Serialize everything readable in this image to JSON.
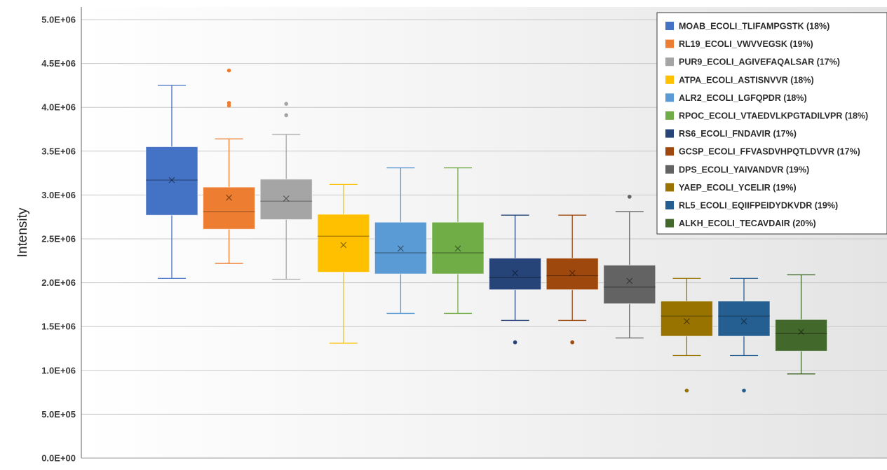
{
  "chart_data": {
    "type": "box",
    "title": "",
    "xlabel": "",
    "ylabel": "Intensity",
    "ylim": [
      0,
      5000000
    ],
    "yticks": [
      {
        "value": 0,
        "label": "0.0E+00"
      },
      {
        "value": 500000,
        "label": "5.0E+05"
      },
      {
        "value": 1000000,
        "label": "1.0E+06"
      },
      {
        "value": 1500000,
        "label": "1.5E+06"
      },
      {
        "value": 2000000,
        "label": "2.0E+06"
      },
      {
        "value": 2500000,
        "label": "2.5E+06"
      },
      {
        "value": 3000000,
        "label": "3.0E+06"
      },
      {
        "value": 3500000,
        "label": "3.5E+06"
      },
      {
        "value": 4000000,
        "label": "4.0E+06"
      },
      {
        "value": 4500000,
        "label": "4.5E+06"
      },
      {
        "value": 5000000,
        "label": "5.0E+06"
      }
    ],
    "grid": true,
    "legend_position": "top-right",
    "series": [
      {
        "name": "MOAB_ECOLI_TLIFAMPGSTK (18%)",
        "color": "#4472c4",
        "min": 2050000,
        "q1": 2770000,
        "median": 3170000,
        "q3": 3550000,
        "max": 4250000,
        "mean": 3170000,
        "outliers": []
      },
      {
        "name": "RL19_ECOLI_VWVVEGSK (19%)",
        "color": "#ed7d31",
        "min": 2220000,
        "q1": 2610000,
        "median": 2810000,
        "q3": 3090000,
        "max": 3640000,
        "mean": 2970000,
        "outliers": [
          4020000,
          4050000,
          4420000
        ]
      },
      {
        "name": "PUR9_ECOLI_AGIVEFAQALSAR (17%)",
        "color": "#a5a5a5",
        "min": 2040000,
        "q1": 2720000,
        "median": 2930000,
        "q3": 3180000,
        "max": 3690000,
        "mean": 2960000,
        "outliers": [
          3910000,
          4040000
        ]
      },
      {
        "name": "ATPA_ECOLI_ASTISNVVR (18%)",
        "color": "#ffc000",
        "min": 1310000,
        "q1": 2120000,
        "median": 2530000,
        "q3": 2780000,
        "max": 3120000,
        "mean": 2430000,
        "outliers": []
      },
      {
        "name": "ALR2_ECOLI_LGFQPDR (18%)",
        "color": "#5b9bd5",
        "min": 1650000,
        "q1": 2100000,
        "median": 2340000,
        "q3": 2690000,
        "max": 3310000,
        "mean": 2390000,
        "outliers": []
      },
      {
        "name": "RPOC_ECOLI_VTAEDVLKPGTADILVPR (18%)",
        "color": "#70ad47",
        "min": 1650000,
        "q1": 2100000,
        "median": 2340000,
        "q3": 2690000,
        "max": 3310000,
        "mean": 2390000,
        "outliers": []
      },
      {
        "name": "RS6_ECOLI_FNDAVIR (17%)",
        "color": "#264478",
        "min": 1570000,
        "q1": 1920000,
        "median": 2060000,
        "q3": 2280000,
        "max": 2770000,
        "mean": 2110000,
        "outliers": [
          1320000
        ]
      },
      {
        "name": "GCSP_ECOLI_FFVASDVHPQTLDVVR (17%)",
        "color": "#9e480e",
        "min": 1570000,
        "q1": 1920000,
        "median": 2080000,
        "q3": 2280000,
        "max": 2770000,
        "mean": 2110000,
        "outliers": [
          1320000
        ]
      },
      {
        "name": "DPS_ECOLI_YAIVANDVR (19%)",
        "color": "#636363",
        "min": 1370000,
        "q1": 1760000,
        "median": 1950000,
        "q3": 2200000,
        "max": 2810000,
        "mean": 2020000,
        "outliers": [
          2980000
        ]
      },
      {
        "name": "YAEP_ECOLI_YCELIR (19%)",
        "color": "#997300",
        "min": 1170000,
        "q1": 1390000,
        "median": 1620000,
        "q3": 1790000,
        "max": 2050000,
        "mean": 1560000,
        "outliers": [
          770000
        ]
      },
      {
        "name": "RL5_ECOLI_EQIIFPEIDYDKVDR (19%)",
        "color": "#255e91",
        "min": 1170000,
        "q1": 1390000,
        "median": 1620000,
        "q3": 1790000,
        "max": 2050000,
        "mean": 1560000,
        "outliers": [
          770000
        ]
      },
      {
        "name": "ALKH_ECOLI_TECAVDAIR (20%)",
        "color": "#43682b",
        "min": 960000,
        "q1": 1220000,
        "median": 1420000,
        "q3": 1580000,
        "max": 2090000,
        "mean": 1440000,
        "outliers": []
      }
    ]
  }
}
